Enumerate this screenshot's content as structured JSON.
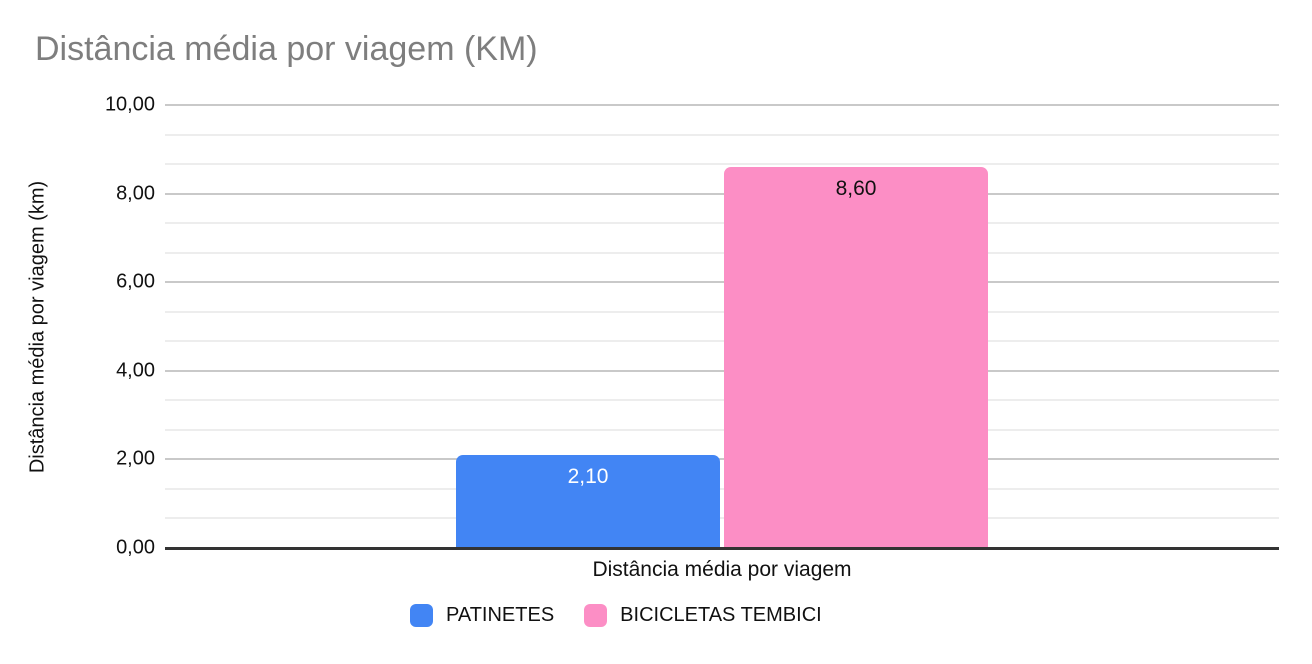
{
  "chart": {
    "title": "Distância média por viagem (KM)",
    "y_axis": {
      "title": "Distância média por viagem (km)",
      "tick_labels": [
        "0,00",
        "2,00",
        "4,00",
        "6,00",
        "8,00",
        "10,00"
      ],
      "minor_divisions": 3
    },
    "x_axis": {
      "title": "Distância média por viagem"
    }
  },
  "chart_data": {
    "type": "bar",
    "title": "Distância média por viagem (KM)",
    "categories": [
      "Distância média por viagem"
    ],
    "series": [
      {
        "name": "PATINETES",
        "values": [
          2.1
        ],
        "data_labels": [
          "2,10"
        ],
        "color": "#4285F4",
        "label_color": "#FFFFFF"
      },
      {
        "name": "BICICLETAS TEMBICI",
        "values": [
          8.6
        ],
        "data_labels": [
          "8,60"
        ],
        "color": "#FC8EC5",
        "label_color": "#111111"
      }
    ],
    "xlabel": "Distância média por viagem",
    "ylabel": "Distância média por viagem (km)",
    "ylim": [
      0,
      10
    ],
    "grid": true,
    "legend_position": "bottom",
    "colors": {
      "major_gridline": "#c9c9c9",
      "minor_gridline": "#ededed",
      "axis_line": "#333333",
      "title_text": "#7e7e7e"
    }
  }
}
